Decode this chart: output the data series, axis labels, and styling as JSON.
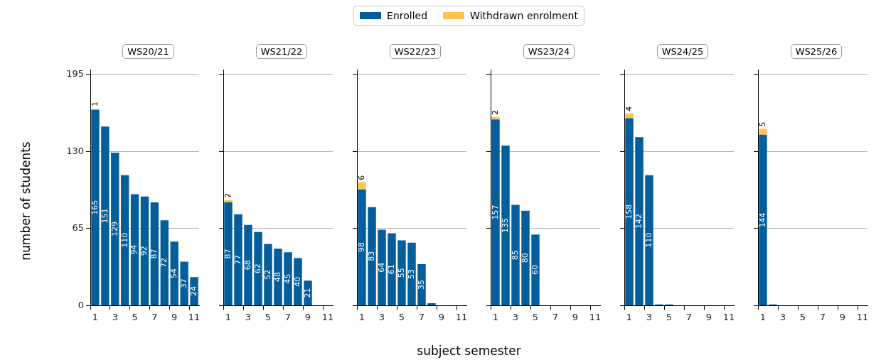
{
  "chart_data": [
    {
      "type": "bar",
      "title": "WS20/21",
      "categories": [
        "1",
        null,
        "3",
        null,
        "5",
        null,
        "7",
        null,
        "9",
        null,
        "11"
      ],
      "stacked": true,
      "legend": "top",
      "grid": "y",
      "ylim": [
        0,
        199
      ],
      "yticks": [
        0,
        65,
        130,
        195
      ],
      "series": [
        {
          "name": "Enrolled",
          "color": "#035e9b",
          "values": [
            165,
            151,
            129,
            110,
            94,
            92,
            87,
            72,
            54,
            37,
            24
          ],
          "value_labels": [
            "165",
            "151",
            "129",
            "110",
            "94",
            "92",
            "87",
            "72",
            "54",
            "37",
            "24"
          ]
        },
        {
          "name": "Withdrawn enrolment",
          "color": "#fec44f",
          "values": [
            1,
            null,
            null,
            null,
            null,
            null,
            null,
            null,
            null,
            null,
            null
          ],
          "value_labels": [
            "1",
            null,
            null,
            null,
            null,
            null,
            null,
            null,
            null,
            null,
            null
          ]
        }
      ]
    },
    {
      "type": "bar",
      "title": "WS21/22",
      "categories": [
        "1",
        null,
        "3",
        null,
        "5",
        null,
        "7",
        null,
        "9",
        null,
        "11"
      ],
      "stacked": true,
      "legend": "top",
      "grid": "y",
      "tick_labels": "x",
      "ylim": [
        0,
        199
      ],
      "yticks": [
        0,
        65,
        130,
        195
      ],
      "series": [
        {
          "name": "Enrolled",
          "color": "#035e9b",
          "values": [
            87,
            77,
            68,
            62,
            52,
            48,
            45,
            40,
            21,
            null,
            null
          ],
          "value_labels": [
            "87",
            "77",
            "68",
            "62",
            "52",
            "48",
            "45",
            "40",
            "21",
            null,
            null
          ]
        },
        {
          "name": "Withdrawn enrolment",
          "color": "#fec44f",
          "values": [
            2,
            null,
            null,
            null,
            null,
            null,
            null,
            null,
            null,
            null,
            null
          ],
          "value_labels": [
            "2",
            null,
            null,
            null,
            null,
            null,
            null,
            null,
            null,
            null,
            null
          ]
        }
      ]
    },
    {
      "type": "bar",
      "title": "WS22/23",
      "categories": [
        "1",
        null,
        "3",
        null,
        "5",
        null,
        "7",
        null,
        "9",
        null,
        "11"
      ],
      "stacked": true,
      "legend": "top",
      "grid": "y",
      "tick_labels": "x",
      "ylim": [
        0,
        199
      ],
      "yticks": [
        0,
        65,
        130,
        195
      ],
      "series": [
        {
          "name": "Enrolled",
          "color": "#035e9b",
          "values": [
            98,
            83,
            64,
            61,
            55,
            53,
            35,
            2,
            null,
            null,
            null
          ],
          "value_labels": [
            "98",
            "83",
            "64",
            "61",
            "55",
            "53",
            "35",
            null,
            null,
            null,
            null
          ]
        },
        {
          "name": "Withdrawn enrolment",
          "color": "#fec44f",
          "values": [
            6,
            null,
            null,
            null,
            null,
            null,
            null,
            null,
            null,
            null,
            null
          ],
          "value_labels": [
            "6",
            null,
            null,
            null,
            null,
            null,
            null,
            null,
            null,
            null,
            null
          ]
        }
      ]
    },
    {
      "type": "bar",
      "title": "WS23/24",
      "categories": [
        "1",
        null,
        "3",
        null,
        "5",
        null,
        "7",
        null,
        "9",
        null,
        "11"
      ],
      "stacked": true,
      "legend": "top",
      "grid": "y",
      "tick_labels": "x",
      "ylim": [
        0,
        199
      ],
      "yticks": [
        0,
        65,
        130,
        195
      ],
      "series": [
        {
          "name": "Enrolled",
          "color": "#035e9b",
          "values": [
            157,
            135,
            85,
            80,
            60,
            null,
            null,
            null,
            null,
            null,
            null
          ],
          "value_labels": [
            "157",
            "135",
            "85",
            "80",
            "60",
            null,
            null,
            null,
            null,
            null,
            null
          ]
        },
        {
          "name": "Withdrawn enrolment",
          "color": "#fec44f",
          "values": [
            2,
            null,
            null,
            null,
            null,
            null,
            null,
            null,
            null,
            null,
            null
          ],
          "value_labels": [
            "2",
            null,
            null,
            null,
            null,
            null,
            null,
            null,
            null,
            null,
            null
          ]
        }
      ]
    },
    {
      "type": "bar",
      "title": "WS24/25",
      "categories": [
        "1",
        null,
        "3",
        null,
        "5",
        null,
        "7",
        null,
        "9",
        null,
        "11"
      ],
      "stacked": true,
      "legend": "top",
      "grid": "y",
      "tick_labels": "x",
      "ylim": [
        0,
        199
      ],
      "yticks": [
        0,
        65,
        130,
        195
      ],
      "series": [
        {
          "name": "Enrolled",
          "color": "#035e9b",
          "values": [
            158,
            142,
            110,
            1,
            1,
            null,
            null,
            null,
            null,
            null,
            null
          ],
          "value_labels": [
            "158",
            "142",
            "110",
            null,
            null,
            null,
            null,
            null,
            null,
            null,
            null
          ]
        },
        {
          "name": "Withdrawn enrolment",
          "color": "#fec44f",
          "values": [
            4,
            null,
            null,
            null,
            null,
            null,
            null,
            null,
            null,
            null,
            null
          ],
          "value_labels": [
            "4",
            null,
            null,
            null,
            null,
            null,
            null,
            null,
            null,
            null,
            null
          ]
        }
      ]
    },
    {
      "type": "bar",
      "title": "WS25/26",
      "categories": [
        "1",
        null,
        "3",
        null,
        "5",
        null,
        "7",
        null,
        "9",
        null,
        "11"
      ],
      "stacked": true,
      "legend": "top",
      "grid": "y",
      "tick_labels": "x",
      "ylim": [
        0,
        199
      ],
      "yticks": [
        0,
        65,
        130,
        195
      ],
      "series": [
        {
          "name": "Enrolled",
          "color": "#035e9b",
          "values": [
            144,
            1,
            null,
            null,
            null,
            null,
            null,
            null,
            null,
            null,
            null
          ],
          "value_labels": [
            "144",
            null,
            null,
            null,
            null,
            null,
            null,
            null,
            null,
            null,
            null
          ]
        },
        {
          "name": "Withdrawn enrolment",
          "color": "#fec44f",
          "values": [
            5,
            null,
            null,
            null,
            null,
            null,
            null,
            null,
            null,
            null,
            null
          ],
          "value_labels": [
            "5",
            null,
            null,
            null,
            null,
            null,
            null,
            null,
            null,
            null,
            null
          ]
        }
      ]
    },
    {
      "type": "other",
      "xlabel": "subject semester",
      "ylabel": "number of students"
    }
  ]
}
